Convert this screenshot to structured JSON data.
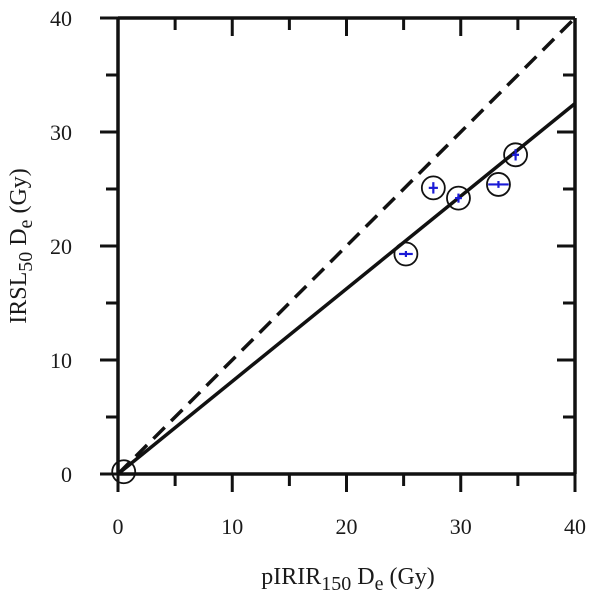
{
  "chart_data": {
    "type": "scatter",
    "title": "",
    "xlabel": {
      "base": "pIRIR",
      "sub": "150",
      "mid": "  D",
      "sub2": "e",
      "tail": " (Gy)"
    },
    "ylabel": {
      "base": "IRSL",
      "sub": "50",
      "mid": " D",
      "sub2": "e",
      "tail": " (Gy)"
    },
    "xlim": [
      0,
      40
    ],
    "ylim": [
      0,
      40
    ],
    "xticks": [
      0,
      10,
      20,
      30,
      40
    ],
    "yticks": [
      0,
      10,
      20,
      30,
      40
    ],
    "xtick_labels": [
      "0",
      "10",
      "20",
      "30",
      "40"
    ],
    "ytick_labels": [
      "0",
      "10",
      "20",
      "30",
      "40"
    ],
    "grid": false,
    "legend": "none",
    "series": [
      {
        "values": [
          {
            "x": 0.5,
            "y": 0.2,
            "xerr": 0.0,
            "yerr": 0.0
          },
          {
            "x": 25.2,
            "y": 19.3,
            "xerr": 0.6,
            "yerr": 0.2
          },
          {
            "x": 27.6,
            "y": 25.1,
            "xerr": 0.4,
            "yerr": 0.5
          },
          {
            "x": 29.8,
            "y": 24.2,
            "xerr": 0.3,
            "yerr": 0.4
          },
          {
            "x": 33.3,
            "y": 25.4,
            "xerr": 0.9,
            "yerr": 0.3
          },
          {
            "x": 34.8,
            "y": 28.0,
            "xerr": 0.3,
            "yerr": 0.5
          }
        ]
      }
    ],
    "lines": [
      {
        "style": "dashed",
        "x": [
          0,
          40
        ],
        "y": [
          0,
          40
        ]
      },
      {
        "style": "solid",
        "x": [
          0,
          40
        ],
        "y": [
          0,
          32.5
        ]
      }
    ],
    "colors": {
      "axis": "#111111",
      "marker": "#111111",
      "error_bar": "#1a1ad6"
    }
  }
}
